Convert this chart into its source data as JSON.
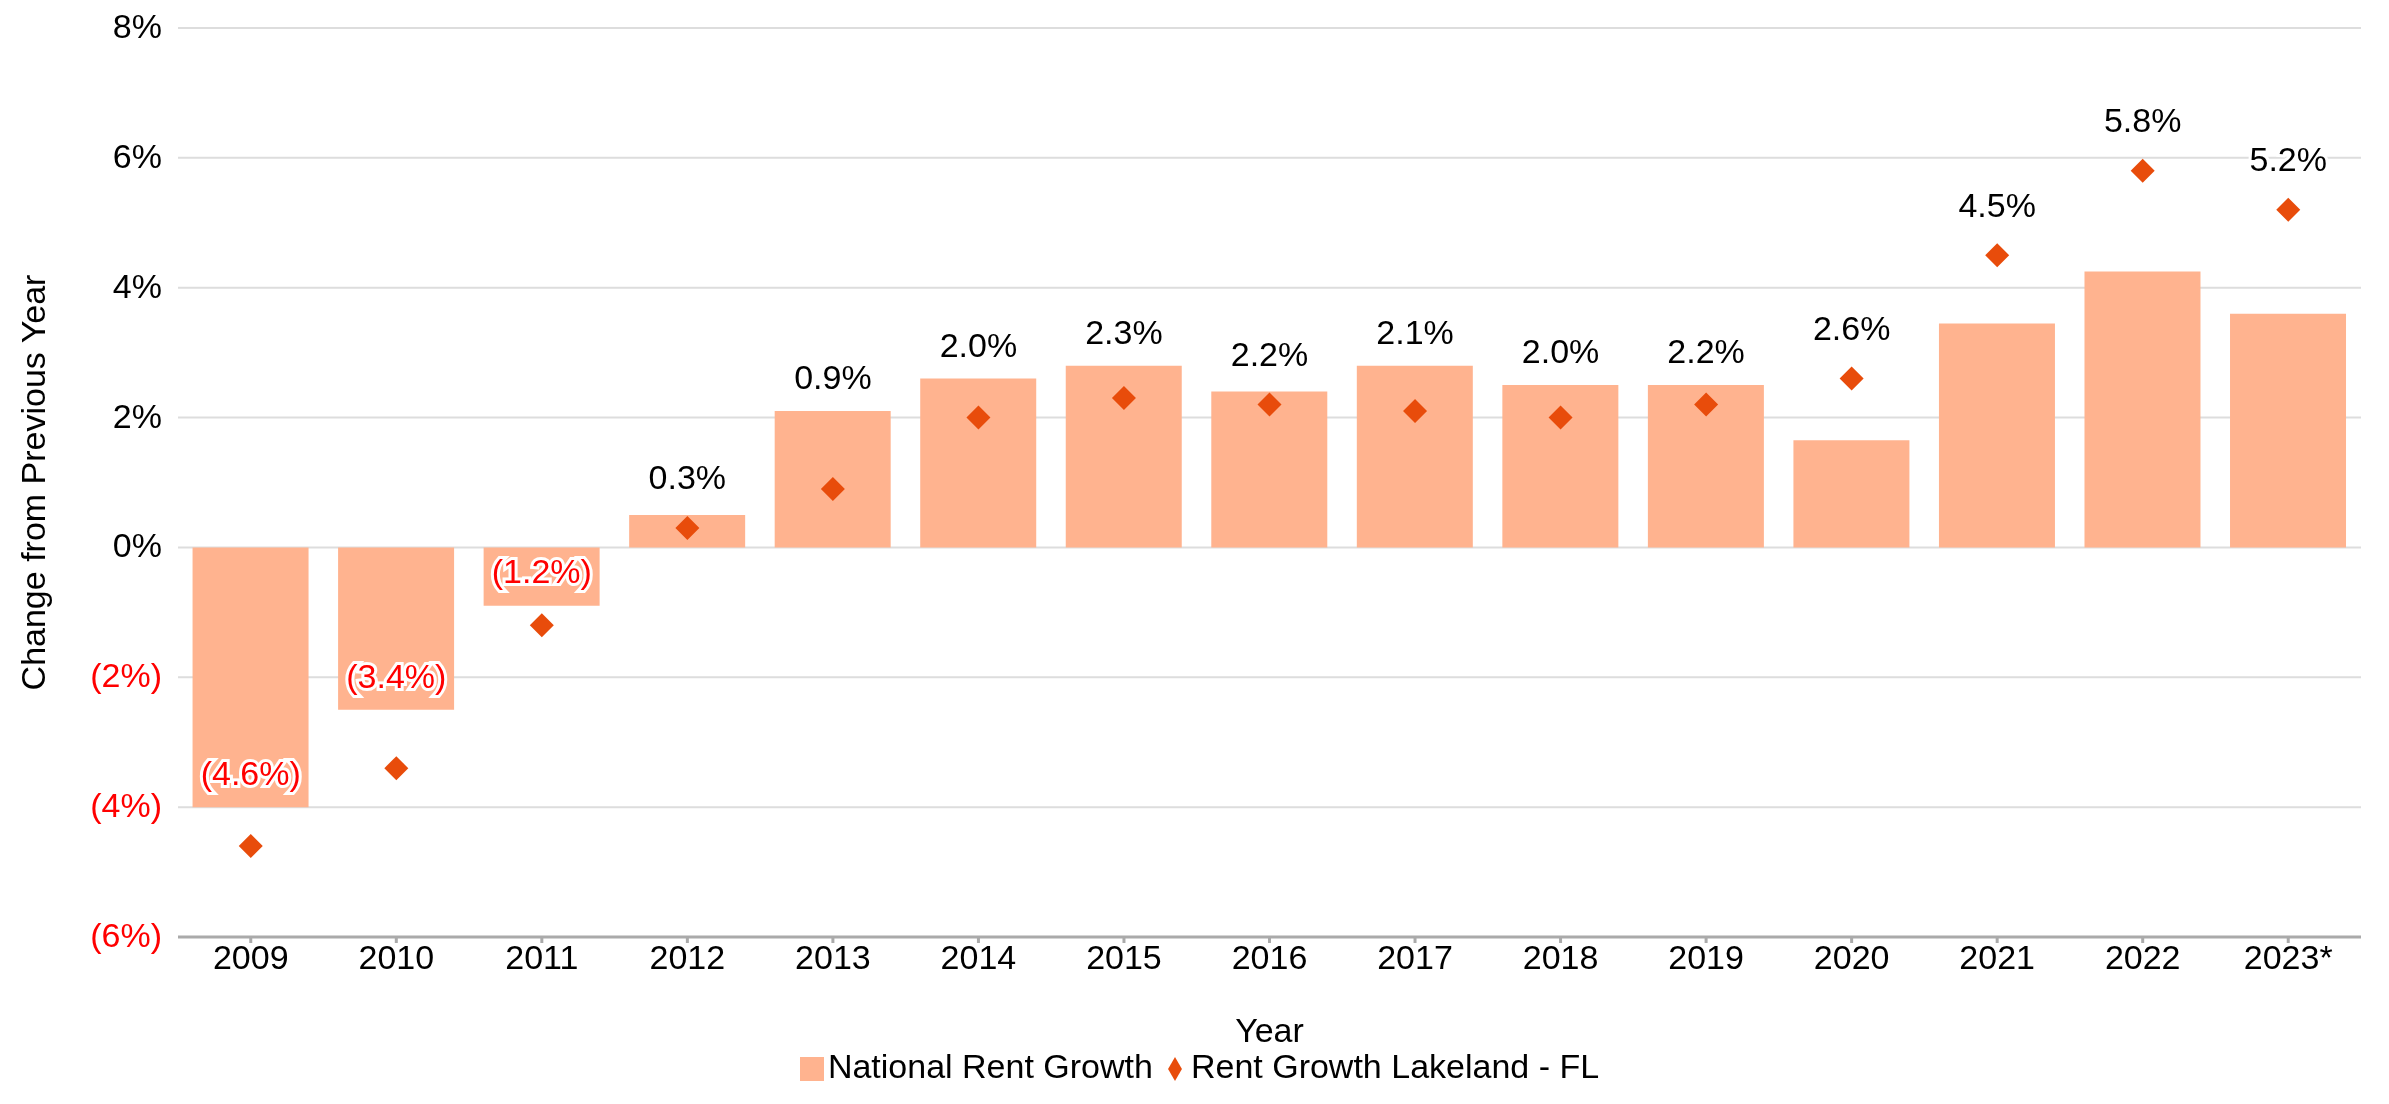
{
  "chart_data": {
    "type": "bar",
    "xlabel": "Year",
    "ylabel": "Change from Previous Year",
    "categories": [
      "2009",
      "2010",
      "2011",
      "2012",
      "2013",
      "2014",
      "2015",
      "2016",
      "2017",
      "2018",
      "2019",
      "2020",
      "2021",
      "2022",
      "2023*"
    ],
    "series": [
      {
        "name": "National Rent Growth",
        "color": "#ffb38f",
        "values": [
          -4.0,
          -2.5,
          -0.9,
          0.5,
          2.1,
          2.6,
          2.8,
          2.4,
          2.8,
          2.5,
          2.5,
          1.65,
          3.45,
          4.25,
          3.6
        ]
      },
      {
        "name": "Rent Growth Lakeland - FL",
        "type": "scatter",
        "marker": "diamond",
        "color": "#e84c0b",
        "values": [
          -4.6,
          -3.4,
          -1.2,
          0.3,
          0.9,
          2.0,
          2.3,
          2.2,
          2.1,
          2.0,
          2.2,
          2.6,
          4.5,
          5.8,
          5.2
        ],
        "value_labels": [
          "(4.6%)",
          "(3.4%)",
          "(1.2%)",
          "0.3%",
          "0.9%",
          "2.0%",
          "2.3%",
          "2.2%",
          "2.1%",
          "2.0%",
          "2.2%",
          "2.6%",
          "4.5%",
          "5.8%",
          "5.2%"
        ]
      }
    ],
    "ylim": [
      -6,
      8
    ],
    "yticks": [
      {
        "value": -6,
        "label": "(6%)"
      },
      {
        "value": -4,
        "label": "(4%)"
      },
      {
        "value": -2,
        "label": "(2%)"
      },
      {
        "value": 0,
        "label": "0%"
      },
      {
        "value": 2,
        "label": "2%"
      },
      {
        "value": 4,
        "label": "4%"
      },
      {
        "value": 6,
        "label": "6%"
      },
      {
        "value": 8,
        "label": "8%"
      }
    ],
    "grid": "y",
    "legend": "bottom"
  }
}
